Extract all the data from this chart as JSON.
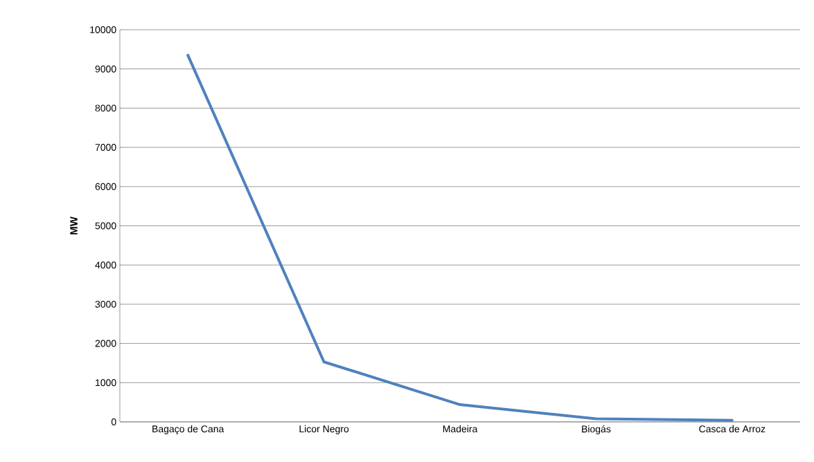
{
  "chart_data": {
    "type": "line",
    "ylabel": "MW",
    "categories": [
      "Bagaço de Cana",
      "Licor Negro",
      "Madeira",
      "Biogás",
      "Casca de Arroz"
    ],
    "series": [
      {
        "color": "#4f81bd",
        "values": [
          9350,
          1530,
          440,
          80,
          40
        ]
      }
    ],
    "ylim": [
      0,
      10000
    ],
    "yticks": [
      0,
      1000,
      2000,
      3000,
      4000,
      5000,
      6000,
      7000,
      8000,
      9000,
      10000
    ],
    "grid": "y",
    "marker": "none",
    "line_style": "solid"
  }
}
